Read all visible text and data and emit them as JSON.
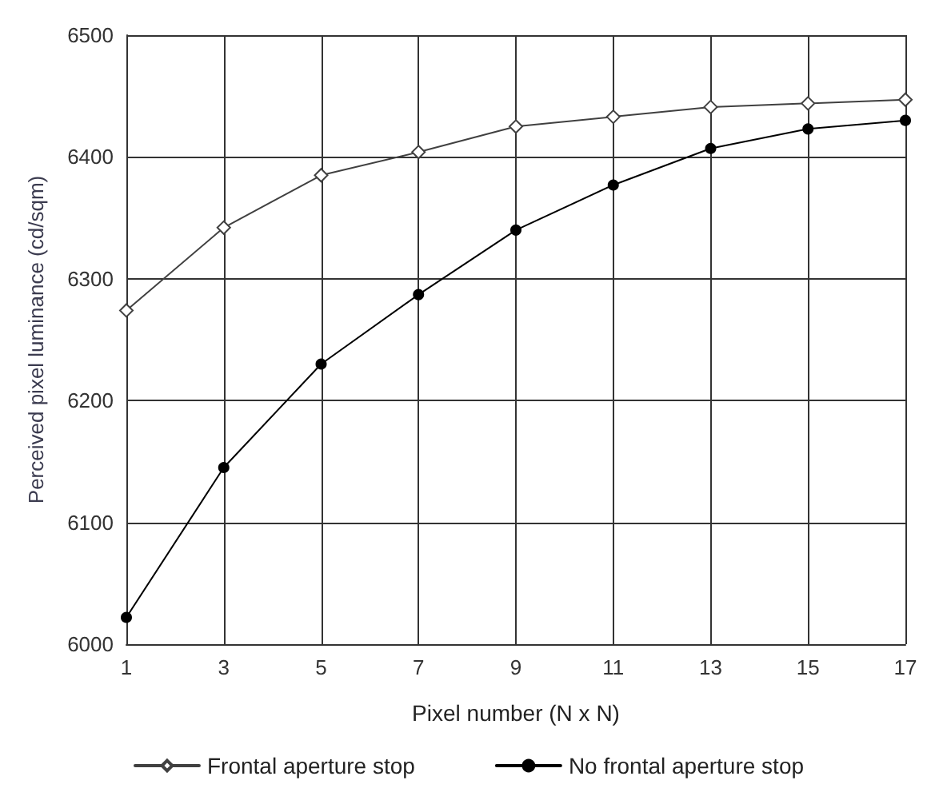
{
  "chart_data": {
    "type": "line",
    "xlabel": "Pixel number (N x N)",
    "ylabel": "Perceived pixel luminance (cd/sqm)",
    "x": [
      1,
      3,
      5,
      7,
      9,
      11,
      13,
      15,
      17
    ],
    "series": [
      {
        "name": "Frontal aperture stop",
        "color": "#404040",
        "marker": "diamond",
        "values": [
          6274,
          6342,
          6385,
          6404,
          6425,
          6433,
          6441,
          6444,
          6447
        ]
      },
      {
        "name": "No frontal aperture stop",
        "color": "#000000",
        "marker": "circle",
        "values": [
          6022,
          6145,
          6230,
          6287,
          6340,
          6377,
          6407,
          6423,
          6430
        ]
      }
    ],
    "xlim": [
      1,
      17
    ],
    "xticks": [
      1,
      3,
      5,
      7,
      9,
      11,
      13,
      15,
      17
    ],
    "ylim": [
      6000,
      6500
    ],
    "yticks": [
      6000,
      6100,
      6200,
      6300,
      6400,
      6500
    ],
    "grid": true,
    "legend": "bottom",
    "line_style": "solid"
  }
}
